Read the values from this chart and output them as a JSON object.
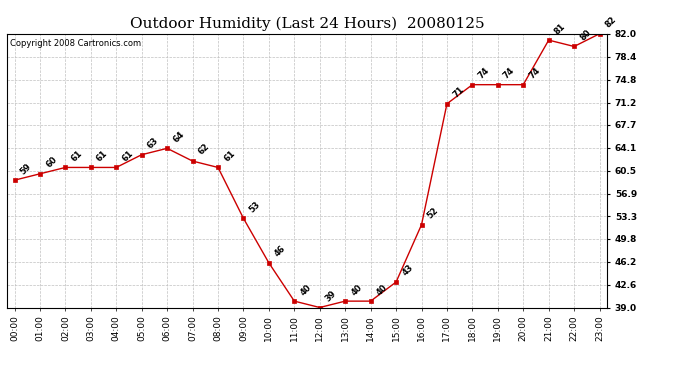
{
  "title": "Outdoor Humidity (Last 24 Hours)  20080125",
  "copyright": "Copyright 2008 Cartronics.com",
  "x_labels": [
    "00:00",
    "01:00",
    "02:00",
    "03:00",
    "04:00",
    "05:00",
    "06:00",
    "07:00",
    "08:00",
    "09:00",
    "10:00",
    "11:00",
    "12:00",
    "13:00",
    "14:00",
    "15:00",
    "16:00",
    "17:00",
    "18:00",
    "19:00",
    "20:00",
    "21:00",
    "22:00",
    "23:00"
  ],
  "hours": [
    0,
    1,
    2,
    3,
    4,
    5,
    6,
    7,
    8,
    9,
    10,
    11,
    12,
    13,
    14,
    15,
    16,
    17,
    18,
    19,
    20,
    21,
    22,
    23
  ],
  "values": [
    59,
    60,
    61,
    61,
    61,
    63,
    64,
    62,
    61,
    53,
    46,
    40,
    39,
    40,
    40,
    43,
    52,
    71,
    74,
    74,
    74,
    81,
    80,
    82
  ],
  "ylim_min": 39.0,
  "ylim_max": 82.0,
  "yticks": [
    39.0,
    42.6,
    46.2,
    49.8,
    53.3,
    56.9,
    60.5,
    64.1,
    67.7,
    71.2,
    74.8,
    78.4,
    82.0
  ],
  "line_color": "#cc0000",
  "marker_color": "#cc0000",
  "bg_color": "#ffffff",
  "plot_bg_color": "#ffffff",
  "grid_color": "#c0c0c0",
  "title_fontsize": 11,
  "label_fontsize": 6.5,
  "annot_fontsize": 6,
  "copyright_fontsize": 6
}
